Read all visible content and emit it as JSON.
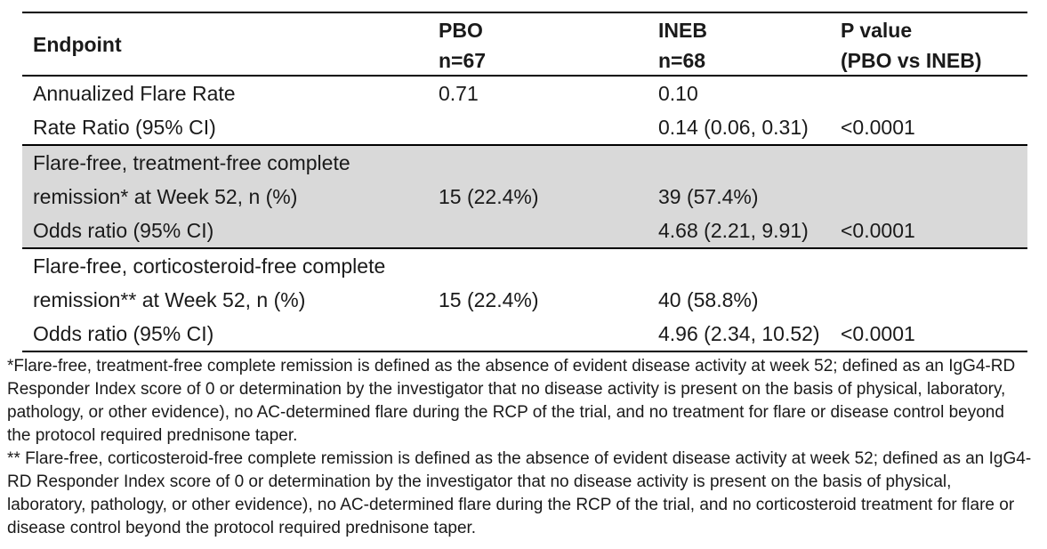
{
  "colors": {
    "shaded_band_bg": "#d9d9d9",
    "rule_color": "#000000",
    "text_color": "#1a1a1a"
  },
  "table": {
    "header": {
      "endpoint": "Endpoint",
      "pbo_line1": "PBO",
      "pbo_line2": "n=67",
      "ineb_line1": "INEB",
      "ineb_line2": "n=68",
      "pvalue_line1": "P value",
      "pvalue_line2": "(PBO vs INEB)"
    },
    "groups": [
      {
        "shaded": false,
        "rows": [
          {
            "endpoint": "Annualized Flare Rate",
            "pbo": "0.71",
            "ineb": "0.10",
            "p": ""
          },
          {
            "endpoint": "Rate Ratio (95% CI)",
            "pbo": "",
            "ineb": "0.14 (0.06, 0.31)",
            "p": "<0.0001"
          }
        ]
      },
      {
        "shaded": true,
        "rows": [
          {
            "endpoint": "Flare-free, treatment-free complete",
            "pbo": "",
            "ineb": "",
            "p": ""
          },
          {
            "endpoint": "remission* at Week 52, n (%)",
            "pbo": "15 (22.4%)",
            "ineb": "39 (57.4%)",
            "p": ""
          },
          {
            "endpoint": "Odds ratio (95% CI)",
            "pbo": "",
            "ineb": "4.68 (2.21, 9.91)",
            "p": "<0.0001"
          }
        ]
      },
      {
        "shaded": false,
        "rows": [
          {
            "endpoint": "Flare-free, corticosteroid-free complete",
            "pbo": "",
            "ineb": "",
            "p": ""
          },
          {
            "endpoint": "remission** at Week 52, n (%)",
            "pbo": "15 (22.4%)",
            "ineb": "40 (58.8%)",
            "p": ""
          },
          {
            "endpoint": "Odds ratio (95% CI)",
            "pbo": "",
            "ineb": "4.96 (2.34, 10.52)",
            "p": "<0.0001"
          }
        ]
      }
    ]
  },
  "footnotes": [
    "*Flare-free, treatment-free complete remission is defined as the absence of evident disease activity at week 52; defined as an IgG4-RD Responder Index score of 0 or determination by the investigator that no disease activity is present on the basis of physical, laboratory, pathology, or other evidence), no AC-determined flare during the RCP of the trial, and no treatment for flare or disease control beyond the protocol required prednisone taper.",
    "** Flare-free, corticosteroid-free complete remission is defined as the absence of evident disease activity at week 52; defined as an IgG4-RD Responder Index score of 0 or determination by the investigator that no disease activity is present on the basis of physical, laboratory, pathology, or other evidence), no AC-determined flare during the RCP of the trial, and no corticosteroid treatment for flare or disease control beyond the protocol required prednisone taper."
  ]
}
